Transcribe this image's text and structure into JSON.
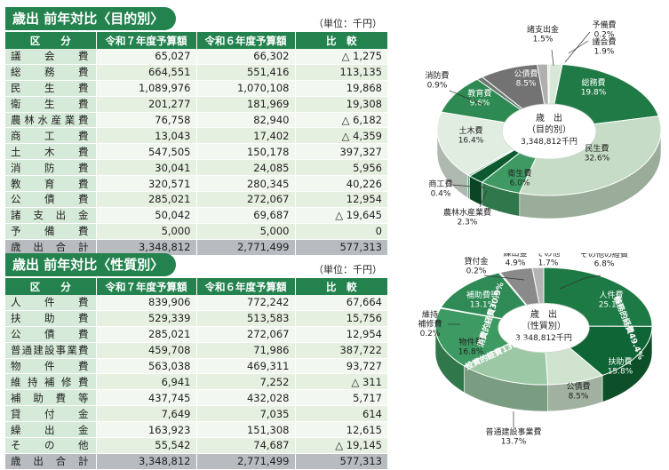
{
  "unit_label": "（単位：千円）",
  "columns": [
    "区　　分",
    "令和７年度予算額",
    "令和６年度予算額",
    "比　較"
  ],
  "section1": {
    "title": "歳出 前年対比〈目的別〉",
    "rows": [
      [
        "議会費",
        "65,027",
        "66,302",
        "△ 1,275"
      ],
      [
        "総務費",
        "664,551",
        "551,416",
        "113,135"
      ],
      [
        "民生費",
        "1,089,976",
        "1,070,108",
        "19,868"
      ],
      [
        "衛生費",
        "201,277",
        "181,969",
        "19,308"
      ],
      [
        "農林水産業費",
        "76,758",
        "82,940",
        "△ 6,182"
      ],
      [
        "商工費",
        "13,043",
        "17,402",
        "△ 4,359"
      ],
      [
        "土木費",
        "547,505",
        "150,178",
        "397,327"
      ],
      [
        "消防費",
        "30,041",
        "24,085",
        "5,956"
      ],
      [
        "教育費",
        "320,571",
        "280,345",
        "40,226"
      ],
      [
        "公債費",
        "285,021",
        "272,067",
        "12,954"
      ],
      [
        "諸支出金",
        "50,042",
        "69,687",
        "△ 19,645"
      ],
      [
        "予備費",
        "5,000",
        "5,000",
        "0"
      ]
    ],
    "total": [
      "歳出合計",
      "3,348,812",
      "2,771,499",
      "577,313"
    ]
  },
  "section2": {
    "title": "歳出 前年対比〈性質別〉",
    "rows": [
      [
        "人件費",
        "839,906",
        "772,242",
        "67,664"
      ],
      [
        "扶助費",
        "529,339",
        "513,583",
        "15,756"
      ],
      [
        "公債費",
        "285,021",
        "272,067",
        "12,954"
      ],
      [
        "普通建設事業費",
        "459,708",
        "71,986",
        "387,722"
      ],
      [
        "物件費",
        "563,038",
        "469,311",
        "93,727"
      ],
      [
        "維持補修費",
        "6,941",
        "7,252",
        "△ 311"
      ],
      [
        "補助費等",
        "437,745",
        "432,028",
        "5,717"
      ],
      [
        "貸付金",
        "7,649",
        "7,035",
        "614"
      ],
      [
        "繰出金",
        "163,923",
        "151,308",
        "12,615"
      ],
      [
        "その他",
        "55,542",
        "74,687",
        "△ 19,145"
      ]
    ],
    "total": [
      "歳出合計",
      "3,348,812",
      "2,771,499",
      "577,313"
    ]
  },
  "chart_data": [
    {
      "type": "pie",
      "center_label": [
        "歳　出",
        "（目的別）",
        "3,348,812千円"
      ],
      "slices": [
        {
          "name": "議会費",
          "value": 1.9,
          "color": "#d8e8d8",
          "label": [
            "議会費",
            "1.9%"
          ]
        },
        {
          "name": "総務費",
          "value": 19.8,
          "color": "#1f7a45",
          "label": [
            "総務費",
            "19.8%"
          ]
        },
        {
          "name": "民生費",
          "value": 32.6,
          "color": "#c6dcc6",
          "label": [
            "民生費",
            "32.6%"
          ]
        },
        {
          "name": "衛生費",
          "value": 6.0,
          "color": "#3e9a62",
          "label": [
            "衛生費",
            "6.0%"
          ]
        },
        {
          "name": "農林水産業費",
          "value": 2.3,
          "color": "#0d5a30",
          "label": [
            "農林水産業費",
            "2.3%"
          ]
        },
        {
          "name": "商工費",
          "value": 0.4,
          "color": "#8cc09c",
          "label": [
            "商工費",
            "0.4%"
          ]
        },
        {
          "name": "土木費",
          "value": 16.4,
          "color": "#e2ede2",
          "label": [
            "土木費",
            "16.4%"
          ]
        },
        {
          "name": "教育費",
          "value": 9.6,
          "color": "#2d8a52",
          "label": [
            "教育費",
            "9.6%"
          ]
        },
        {
          "name": "消防費",
          "value": 0.9,
          "color": "#6a7a70",
          "label": [
            "消防費",
            "0.9%"
          ]
        },
        {
          "name": "公債費",
          "value": 8.5,
          "color": "#737373",
          "label": [
            "公債費",
            "8.5%"
          ]
        },
        {
          "name": "諸支出金",
          "value": 1.5,
          "color": "#b0b0b0",
          "label": [
            "諸支出金",
            "1.5%"
          ]
        },
        {
          "name": "予備費",
          "value": 0.2,
          "color": "#d0d0d0",
          "label": [
            "予備費",
            "0.2%"
          ]
        }
      ]
    },
    {
      "type": "pie",
      "center_label": [
        "歳　出",
        "（性質別）",
        "3,348,812千円"
      ],
      "ring_labels": [
        "義務的経費49.4%",
        "消費的経費30.9%",
        "投資的経費13.7%"
      ],
      "slices": [
        {
          "name": "人件費",
          "value": 25.1,
          "color": "#1d7a45",
          "label": [
            "人件費",
            "25.1%"
          ]
        },
        {
          "name": "扶助費",
          "value": 15.8,
          "color": "#0f6535",
          "label": [
            "扶助費",
            "15.8%"
          ]
        },
        {
          "name": "公債費",
          "value": 8.5,
          "color": "#cfe3cf",
          "label": [
            "公債費",
            "8.5%"
          ]
        },
        {
          "name": "普通建設事業費",
          "value": 13.7,
          "color": "#9cc8a6",
          "label": [
            "普通建設事業費",
            "13.7%"
          ]
        },
        {
          "name": "物件費",
          "value": 16.8,
          "color": "#3d9a62",
          "label": [
            "物件費",
            "16.8%"
          ]
        },
        {
          "name": "維持補修費",
          "value": 0.2,
          "color": "#a0b0a5",
          "label": [
            "維持",
            "補修費",
            "0.2%"
          ]
        },
        {
          "name": "補助費等",
          "value": 13.1,
          "color": "#2f8a56",
          "label": [
            "補助費等",
            "13.1%"
          ]
        },
        {
          "name": "貸付金",
          "value": 0.2,
          "color": "#c0c0c0",
          "label": [
            "貸付金",
            "0.2%"
          ]
        },
        {
          "name": "繰出金",
          "value": 4.9,
          "color": "#8a8a8a",
          "label": [
            "繰出金",
            "4.9%"
          ]
        },
        {
          "name": "その他",
          "value": 1.7,
          "color": "#b4b4b4",
          "label": [
            "その他",
            "1.7%"
          ]
        }
      ],
      "other_label": [
        "その他の経費",
        "6.8%"
      ]
    }
  ]
}
